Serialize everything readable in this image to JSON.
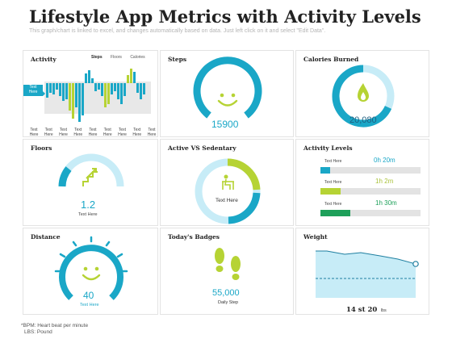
{
  "page": {
    "title": "Lifestyle App Metrics with Activity Levels",
    "subtitle": "This graph/chart is linked to excel, and changes automatically based on data. Just left click on it and select \"Edit Data\"."
  },
  "colors": {
    "teal": "#1aa7c7",
    "light_teal": "#c7ecf7",
    "lime": "#b6d334",
    "green": "#1ea05a",
    "navy": "#1f5f80"
  },
  "activity": {
    "title": "Activity",
    "tabs": [
      "Steps",
      "Floors",
      "Calories"
    ],
    "active_tab": "Steps",
    "callout": "Text Here",
    "x_labels": [
      "Text Here",
      "Text Here",
      "Text Here",
      "Text Here",
      "Text Here",
      "Text Here",
      "Text Here",
      "Text Here",
      "Text Here"
    ]
  },
  "steps": {
    "title": "Steps",
    "value": "15900",
    "icon": "smiley-icon"
  },
  "calories": {
    "title": "Calories Burned",
    "value": "20,080",
    "icon": "flame-icon"
  },
  "floors": {
    "title": "Floors",
    "value": "1.2",
    "caption": "Text Here",
    "icon": "stairs-icon"
  },
  "active_sedentary": {
    "title": "Active VS Sedentary",
    "caption": "Text Here",
    "icon": "person-desk-icon"
  },
  "activity_levels": {
    "title": "Activity Levels",
    "rows": [
      {
        "label": "Text Here",
        "value": "0h 20m",
        "level": 0.1
      },
      {
        "label": "Text Here",
        "value": "1h 2m",
        "level": 0.2
      },
      {
        "label": "Text Here",
        "value": "1h 30m",
        "level": 0.3
      }
    ]
  },
  "distance": {
    "title": "Distance",
    "value": "40",
    "caption": "Text Here",
    "icon": "smiley-icon"
  },
  "badges": {
    "title": "Today's Badges",
    "value": "55,000",
    "caption": "Daily Step",
    "icon": "footprints-icon"
  },
  "weight": {
    "title": "Weight",
    "value": "14 st 20",
    "unit": "lbs"
  },
  "footer": {
    "line1": "*BPM: Heart beat per minute",
    "line2": "LBS: Pound"
  }
}
